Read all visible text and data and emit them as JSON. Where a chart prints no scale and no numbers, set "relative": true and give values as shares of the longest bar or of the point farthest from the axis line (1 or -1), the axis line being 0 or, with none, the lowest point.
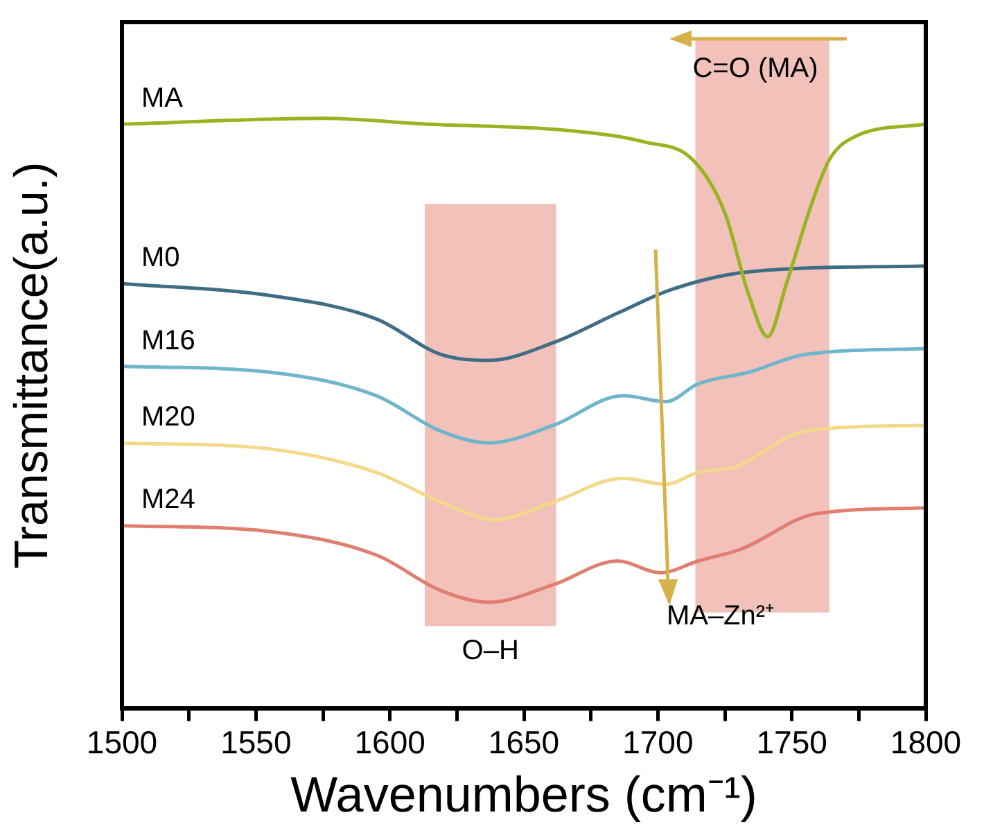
{
  "chart_data": {
    "type": "line",
    "relative": true,
    "xlabel": "Wavenumbers (cm⁻¹)",
    "ylabel": "Transmittance(a.u.)",
    "xlim": [
      1500,
      1800
    ],
    "xticks": [
      1500,
      {
        "value": 1525,
        "label": null
      },
      1550,
      {
        "value": 1575,
        "label": null
      },
      1600,
      {
        "value": 1625,
        "label": null
      },
      1650,
      {
        "value": 1675,
        "label": null
      },
      1700,
      {
        "value": 1725,
        "label": null
      },
      1750,
      {
        "value": 1775,
        "label": null
      },
      1800
    ],
    "grid": false,
    "legend": false,
    "marker": "none",
    "line_style": "solid",
    "tick_labels": "x",
    "series": [
      {
        "name": "MA",
        "color": "#9ab321",
        "x": [
          1500,
          1575,
          1615,
          1665,
          1695,
          1713,
          1725,
          1734,
          1741,
          1748,
          1757,
          1764,
          1774,
          1800
        ],
        "values": [
          0.99,
          1.0,
          0.99,
          0.98,
          0.96,
          0.93,
          0.84,
          0.7,
          0.63,
          0.72,
          0.85,
          0.93,
          0.97,
          0.99
        ]
      },
      {
        "name": "M0",
        "color": "#3e6e85",
        "x": [
          1500,
          1555,
          1595,
          1619,
          1637,
          1661,
          1685,
          1705,
          1734,
          1800
        ],
        "values": [
          0.72,
          0.7,
          0.66,
          0.6,
          0.59,
          0.62,
          0.67,
          0.71,
          0.74,
          0.75
        ]
      },
      {
        "name": "M16",
        "color": "#6fb6cc",
        "x": [
          1500,
          1555,
          1595,
          1619,
          1637,
          1661,
          1687,
          1703,
          1715,
          1734,
          1755,
          1800
        ],
        "values": [
          0.58,
          0.57,
          0.53,
          0.47,
          0.45,
          0.48,
          0.53,
          0.52,
          0.55,
          0.57,
          0.6,
          0.61
        ]
      },
      {
        "name": "M20",
        "color": "#f3d98a",
        "x": [
          1500,
          1555,
          1595,
          1619,
          1639,
          1661,
          1687,
          1703,
          1715,
          1729,
          1755,
          1800
        ],
        "values": [
          0.45,
          0.44,
          0.4,
          0.35,
          0.32,
          0.35,
          0.39,
          0.38,
          0.4,
          0.41,
          0.47,
          0.48
        ]
      },
      {
        "name": "M24",
        "color": "#e07f70",
        "x": [
          1500,
          1555,
          1595,
          1619,
          1637,
          1661,
          1685,
          1701,
          1715,
          1731,
          1759,
          1800
        ],
        "values": [
          0.31,
          0.3,
          0.26,
          0.2,
          0.18,
          0.21,
          0.25,
          0.23,
          0.25,
          0.27,
          0.33,
          0.34
        ]
      }
    ],
    "bands": [
      {
        "axis": "x",
        "from": 1613,
        "to": 1662,
        "label": "O–H",
        "color": "#e8988c"
      },
      {
        "axis": "x",
        "from": 1714,
        "to": 1764,
        "color": "#e8988c"
      }
    ],
    "annotations": [
      "C=O (MA)",
      "MA–Zn²⁺"
    ]
  }
}
